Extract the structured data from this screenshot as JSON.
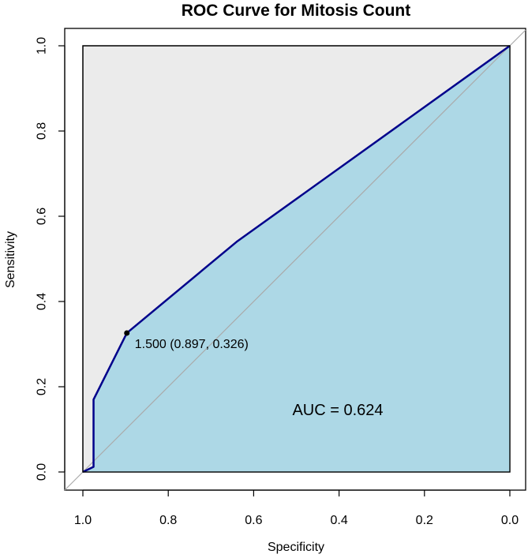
{
  "chart_data": {
    "type": "line",
    "title": "ROC Curve for Mitosis Count",
    "xlabel": "Specificity",
    "ylabel": "Sensitivity",
    "xlim": [
      1.0,
      0.0
    ],
    "ylim": [
      0.0,
      1.0
    ],
    "x_reversed": true,
    "x_ticks": [
      "1.0",
      "0.8",
      "0.6",
      "0.4",
      "0.2",
      "0.0"
    ],
    "y_ticks": [
      "0.0",
      "0.2",
      "0.4",
      "0.6",
      "0.8",
      "1.0"
    ],
    "grid": false,
    "series": [
      {
        "specificity": [
          1.0,
          0.975,
          0.975,
          0.897,
          0.64,
          0.0
        ],
        "sensitivity": [
          0.0,
          0.012,
          0.17,
          0.326,
          0.54,
          1.0
        ],
        "line_color": "#00008b",
        "fill_color": "#add8e6"
      }
    ],
    "diagonal_color": "#aaaaaa",
    "plot_background": "#ebebeb",
    "threshold_point": {
      "specificity": 0.897,
      "sensitivity": 0.326,
      "label": "1.500 (0.897, 0.326)"
    },
    "auc_label": "AUC =  0.624"
  }
}
